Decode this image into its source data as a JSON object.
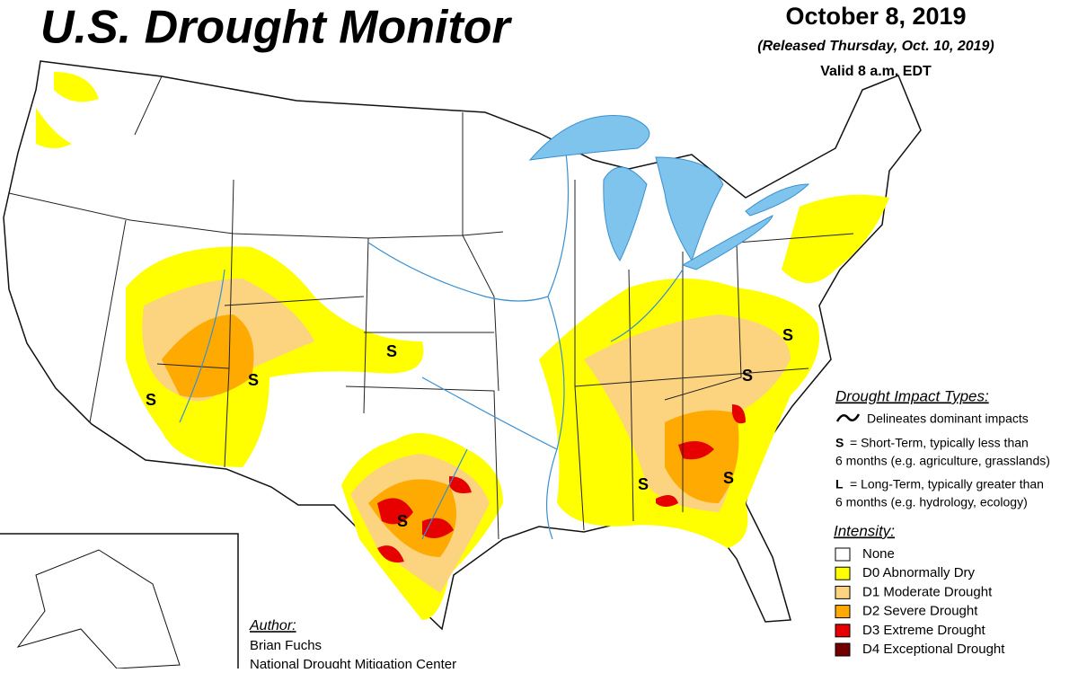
{
  "header": {
    "title": "U.S. Drought Monitor",
    "date": "October 8, 2019",
    "released": "(Released Thursday, Oct. 10, 2019)",
    "valid": "Valid 8 a.m. EDT"
  },
  "impact_types": {
    "heading": "Drought Impact Types:",
    "line_text": "Delineates dominant impacts",
    "items": [
      {
        "key": "S",
        "line1": "= Short-Term, typically less than",
        "line2": "6 months (e.g. agriculture, grasslands)"
      },
      {
        "key": "L",
        "line1": "= Long-Term, typically greater than",
        "line2": "6 months (e.g. hydrology, ecology)"
      }
    ]
  },
  "intensity": {
    "heading": "Intensity:",
    "items": [
      {
        "label": "None",
        "color": "#ffffff"
      },
      {
        "label": "D0 Abnormally Dry",
        "color": "#ffff00"
      },
      {
        "label": "D1 Moderate Drought",
        "color": "#fcd37f"
      },
      {
        "label": "D2 Severe Drought",
        "color": "#ffaa00"
      },
      {
        "label": "D3 Extreme Drought",
        "color": "#e60000"
      },
      {
        "label": "D4 Exceptional Drought",
        "color": "#730000"
      }
    ]
  },
  "author": {
    "heading": "Author:",
    "name": "Brian Fuchs",
    "org": "National Drought Mitigation Center"
  },
  "map_labels": [
    "S",
    "S",
    "S",
    "S",
    "S",
    "S",
    "S",
    "S"
  ]
}
